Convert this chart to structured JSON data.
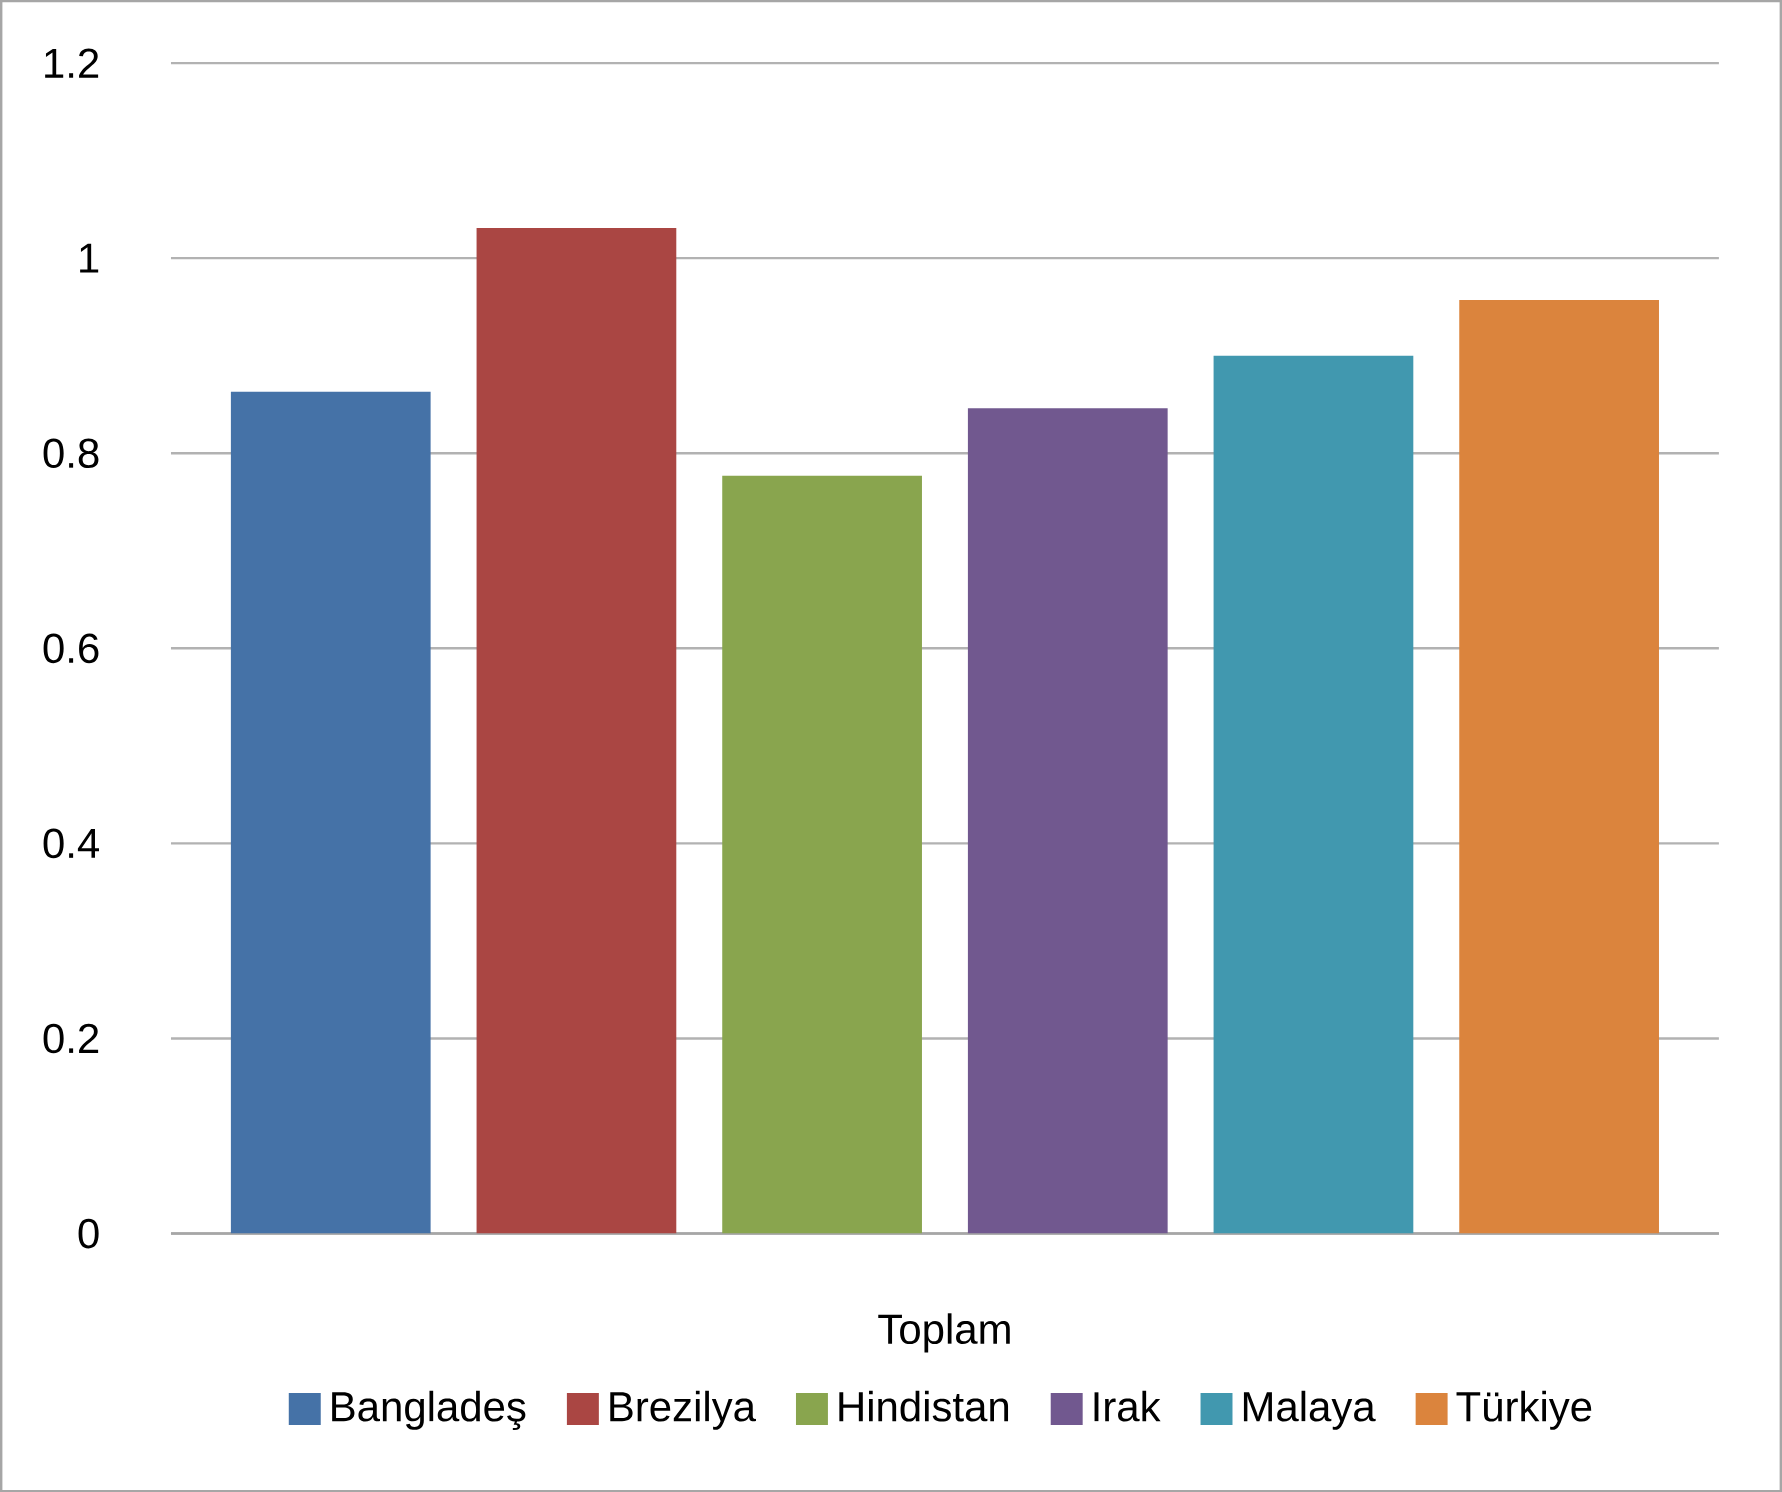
{
  "chart_data": {
    "type": "bar",
    "categories": [
      "Toplam"
    ],
    "series": [
      {
        "name": "Bangladeş",
        "color": "#4572a7",
        "values": [
          0.863
        ]
      },
      {
        "name": "Brezilya",
        "color": "#aa4643",
        "values": [
          1.031
        ]
      },
      {
        "name": "Hindistan",
        "color": "#89a54e",
        "values": [
          0.777
        ]
      },
      {
        "name": "Irak",
        "color": "#71588f",
        "values": [
          0.846
        ]
      },
      {
        "name": "Malaya",
        "color": "#4198af",
        "values": [
          0.9
        ]
      },
      {
        "name": "Türkiye",
        "color": "#db843d",
        "values": [
          0.957
        ]
      }
    ],
    "ylim": [
      0,
      1.2
    ],
    "yticks": [
      0,
      0.2,
      0.4,
      0.6,
      0.8,
      1,
      1.2
    ],
    "grid": "y",
    "legend": "bottom"
  }
}
